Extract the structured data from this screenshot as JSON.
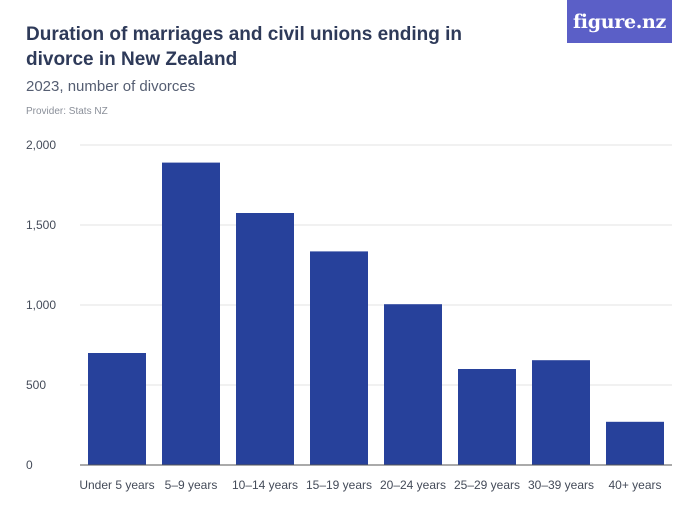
{
  "header": {
    "title": "Duration of marriages and civil unions ending in divorce in New Zealand",
    "subtitle": "2023, number of divorces",
    "provider": "Provider: Stats NZ",
    "logo_text": "figure.nz"
  },
  "colors": {
    "bar": "#27419b",
    "logo_bg": "#5b5fc7",
    "grid": "#e3e3e3",
    "axis": "#555555"
  },
  "chart_data": {
    "type": "bar",
    "title": "Duration of marriages and civil unions ending in divorce in New Zealand",
    "subtitle": "2023, number of divorces",
    "categories": [
      "Under 5 years",
      "5–9 years",
      "10–14 years",
      "15–19 years",
      "20–24 years",
      "25–29 years",
      "30–39 years",
      "40+ years"
    ],
    "values": [
      700,
      1890,
      1575,
      1335,
      1005,
      600,
      655,
      270
    ],
    "ylim": [
      0,
      2000
    ],
    "yticks": [
      0,
      500,
      1000,
      1500,
      2000
    ],
    "ytick_labels": [
      "0",
      "500",
      "1,000",
      "1,500",
      "2,000"
    ],
    "grid": true,
    "legend": "none"
  }
}
